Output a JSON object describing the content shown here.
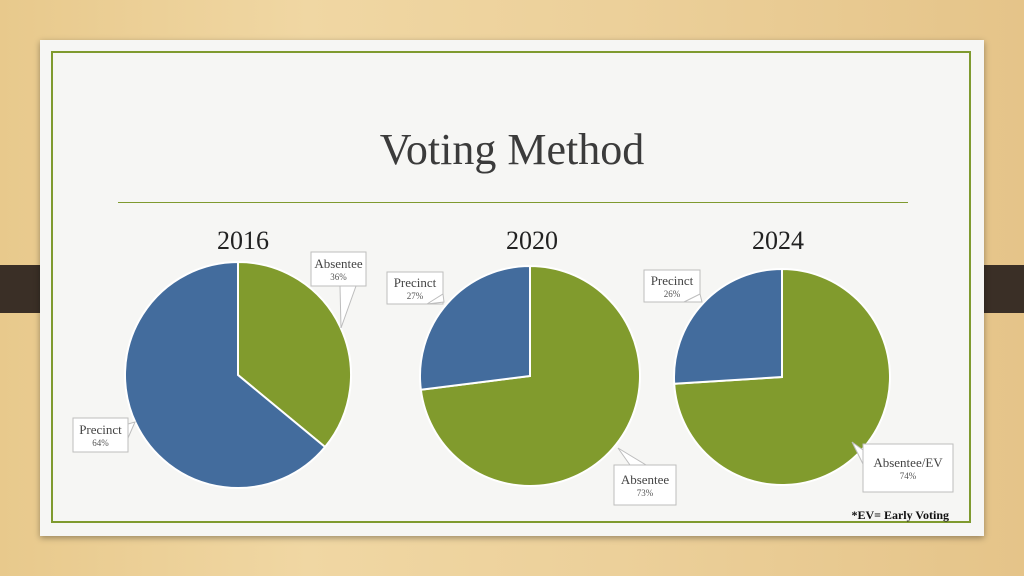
{
  "slide": {
    "title": "Voting Method",
    "footnote": "*EV= Early Voting"
  },
  "colors": {
    "absentee": "#819b2d",
    "precinct": "#436c9d",
    "accent": "#7f9a2f"
  },
  "chart_data": [
    {
      "type": "pie",
      "title": "2016",
      "slices": [
        {
          "label": "Absentee",
          "pct_label": "36%",
          "value": 36
        },
        {
          "label": "Precinct",
          "pct_label": "64%",
          "value": 64
        }
      ]
    },
    {
      "type": "pie",
      "title": "2020",
      "slices": [
        {
          "label": "Absentee",
          "pct_label": "73%",
          "value": 73
        },
        {
          "label": "Precinct",
          "pct_label": "27%",
          "value": 27
        }
      ]
    },
    {
      "type": "pie",
      "title": "2024",
      "slices": [
        {
          "label": "Absentee/EV",
          "pct_label": "74%",
          "value": 74
        },
        {
          "label": "Precinct",
          "pct_label": "26%",
          "value": 26
        }
      ]
    }
  ]
}
